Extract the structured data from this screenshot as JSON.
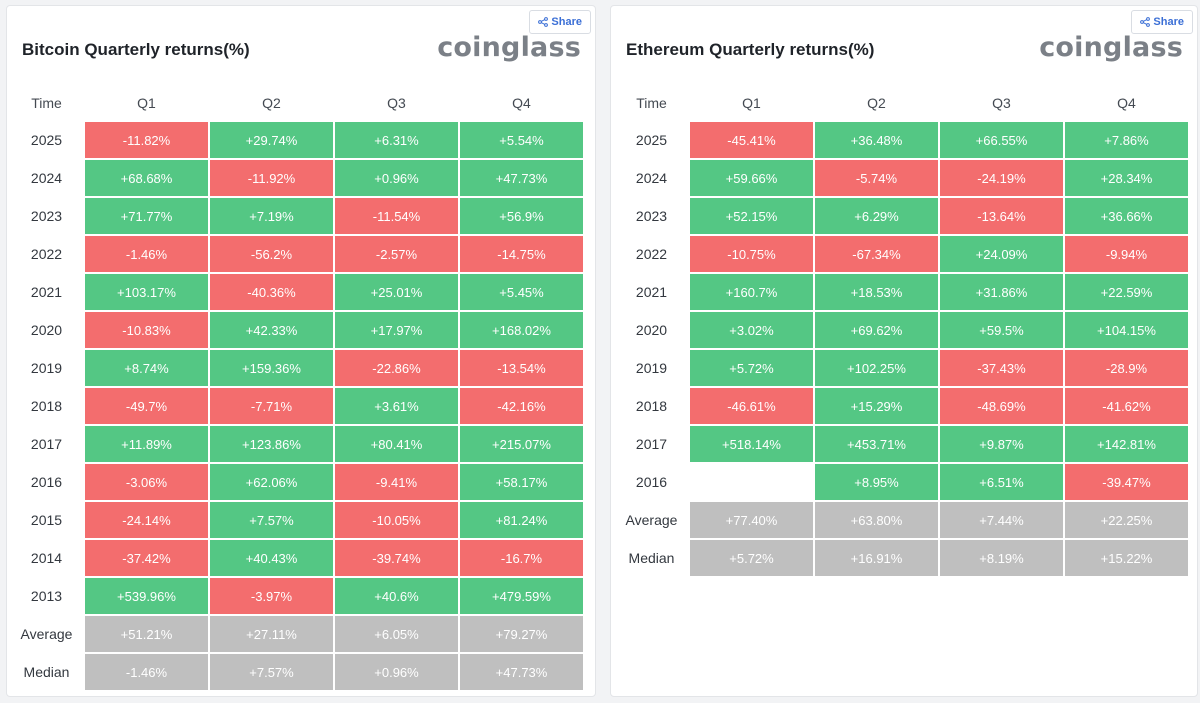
{
  "colors": {
    "positive": "#54c784",
    "negative": "#f36d6e",
    "summary": "#bfbfbf",
    "share_text": "#3b6fd6",
    "brand": "#7b8087"
  },
  "panels": [
    {
      "id": "btc",
      "title": "Bitcoin Quarterly returns(%)",
      "brand": "coinglass",
      "share_label": "Share",
      "share_icon": "share-icon",
      "headers": [
        "Time",
        "Q1",
        "Q2",
        "Q3",
        "Q4"
      ],
      "rows": [
        {
          "label": "2025",
          "values": [
            "-11.82%",
            "+29.74%",
            "+6.31%",
            "+5.54%"
          ]
        },
        {
          "label": "2024",
          "values": [
            "+68.68%",
            "-11.92%",
            "+0.96%",
            "+47.73%"
          ]
        },
        {
          "label": "2023",
          "values": [
            "+71.77%",
            "+7.19%",
            "-11.54%",
            "+56.9%"
          ]
        },
        {
          "label": "2022",
          "values": [
            "-1.46%",
            "-56.2%",
            "-2.57%",
            "-14.75%"
          ]
        },
        {
          "label": "2021",
          "values": [
            "+103.17%",
            "-40.36%",
            "+25.01%",
            "+5.45%"
          ]
        },
        {
          "label": "2020",
          "values": [
            "-10.83%",
            "+42.33%",
            "+17.97%",
            "+168.02%"
          ]
        },
        {
          "label": "2019",
          "values": [
            "+8.74%",
            "+159.36%",
            "-22.86%",
            "-13.54%"
          ]
        },
        {
          "label": "2018",
          "values": [
            "-49.7%",
            "-7.71%",
            "+3.61%",
            "-42.16%"
          ]
        },
        {
          "label": "2017",
          "values": [
            "+11.89%",
            "+123.86%",
            "+80.41%",
            "+215.07%"
          ]
        },
        {
          "label": "2016",
          "values": [
            "-3.06%",
            "+62.06%",
            "-9.41%",
            "+58.17%"
          ]
        },
        {
          "label": "2015",
          "values": [
            "-24.14%",
            "+7.57%",
            "-10.05%",
            "+81.24%"
          ]
        },
        {
          "label": "2014",
          "values": [
            "-37.42%",
            "+40.43%",
            "-39.74%",
            "-16.7%"
          ]
        },
        {
          "label": "2013",
          "values": [
            "+539.96%",
            "-3.97%",
            "+40.6%",
            "+479.59%"
          ]
        }
      ],
      "summary": [
        {
          "label": "Average",
          "values": [
            "+51.21%",
            "+27.11%",
            "+6.05%",
            "+79.27%"
          ]
        },
        {
          "label": "Median",
          "values": [
            "-1.46%",
            "+7.57%",
            "+0.96%",
            "+47.73%"
          ]
        }
      ]
    },
    {
      "id": "eth",
      "title": "Ethereum Quarterly returns(%)",
      "brand": "coinglass",
      "share_label": "Share",
      "share_icon": "share-icon",
      "headers": [
        "Time",
        "Q1",
        "Q2",
        "Q3",
        "Q4"
      ],
      "rows": [
        {
          "label": "2025",
          "values": [
            "-45.41%",
            "+36.48%",
            "+66.55%",
            "+7.86%"
          ]
        },
        {
          "label": "2024",
          "values": [
            "+59.66%",
            "-5.74%",
            "-24.19%",
            "+28.34%"
          ]
        },
        {
          "label": "2023",
          "values": [
            "+52.15%",
            "+6.29%",
            "-13.64%",
            "+36.66%"
          ]
        },
        {
          "label": "2022",
          "values": [
            "-10.75%",
            "-67.34%",
            "+24.09%",
            "-9.94%"
          ]
        },
        {
          "label": "2021",
          "values": [
            "+160.7%",
            "+18.53%",
            "+31.86%",
            "+22.59%"
          ]
        },
        {
          "label": "2020",
          "values": [
            "+3.02%",
            "+69.62%",
            "+59.5%",
            "+104.15%"
          ]
        },
        {
          "label": "2019",
          "values": [
            "+5.72%",
            "+102.25%",
            "-37.43%",
            "-28.9%"
          ]
        },
        {
          "label": "2018",
          "values": [
            "-46.61%",
            "+15.29%",
            "-48.69%",
            "-41.62%"
          ]
        },
        {
          "label": "2017",
          "values": [
            "+518.14%",
            "+453.71%",
            "+9.87%",
            "+142.81%"
          ]
        },
        {
          "label": "2016",
          "values": [
            "",
            "+8.95%",
            "+6.51%",
            "-39.47%"
          ]
        }
      ],
      "summary": [
        {
          "label": "Average",
          "values": [
            "+77.40%",
            "+63.80%",
            "+7.44%",
            "+22.25%"
          ]
        },
        {
          "label": "Median",
          "values": [
            "+5.72%",
            "+16.91%",
            "+8.19%",
            "+15.22%"
          ]
        }
      ]
    }
  ]
}
